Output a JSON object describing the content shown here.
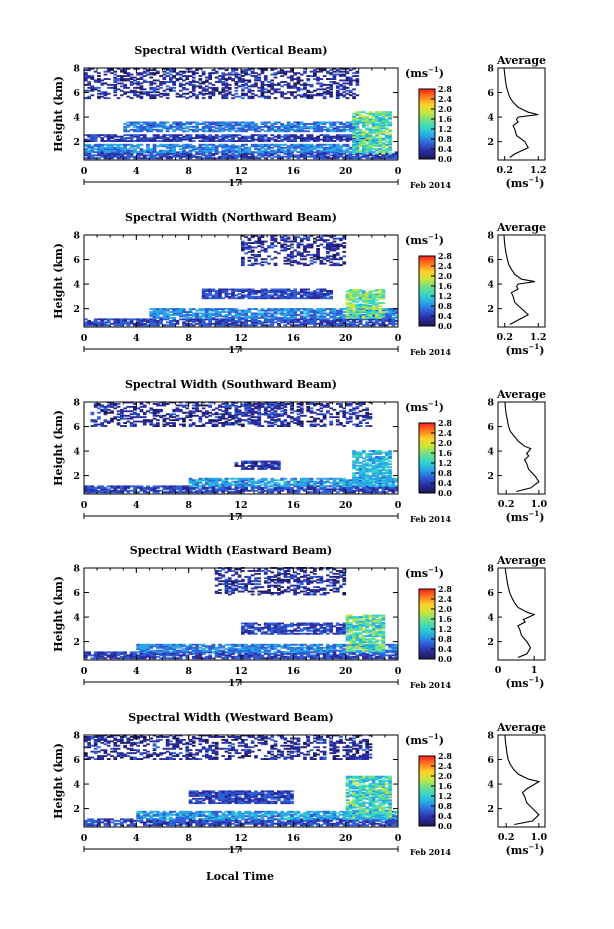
{
  "figure": {
    "xlabel": "Local Time",
    "date_center": "17",
    "date_label": "Feb 2014",
    "colorbar_unit_main": "(ms",
    "colorbar_unit_exp": "−1",
    "colorbar_unit_close": ")",
    "colorbar_ticks": [
      "0.0",
      "0.4",
      "0.8",
      "1.2",
      "1.6",
      "2.0",
      "2.4",
      "2.8"
    ],
    "colorbar_stops": [
      "#1a1a55",
      "#2b2b9e",
      "#2f5fd8",
      "#2aa6e8",
      "#33d6c8",
      "#6fe08a",
      "#c8e63a",
      "#ffd02a",
      "#ff7a1a",
      "#ff2020"
    ],
    "profile_title": "Average",
    "profile_unit_main": "(ms",
    "profile_unit_exp": "−1",
    "profile_unit_close": ")"
  },
  "chart_data": [
    {
      "type": "heatmap",
      "title": "Spectral Width (Vertical Beam)",
      "ylabel": "Height (km)",
      "x_ticks": [
        "0",
        "4",
        "8",
        "12",
        "16",
        "20",
        "0"
      ],
      "y_ticks": [
        "2",
        "4",
        "6",
        "8"
      ],
      "xlim": [
        0,
        24
      ],
      "ylim": [
        0.5,
        8
      ],
      "colorbar_range": [
        0,
        2.8
      ],
      "profile": {
        "title": "Average",
        "x_ticks": [
          "0.2",
          "1.2"
        ],
        "x_tick_values": [
          0.2,
          1.2
        ],
        "xlim": [
          0.0,
          1.4
        ],
        "y_ticks": [
          "2",
          "4",
          "6",
          "8"
        ],
        "x": [
          0.35,
          0.5,
          0.9,
          0.8,
          0.55,
          0.5,
          0.45,
          0.6,
          0.55,
          0.6,
          1.2,
          0.9,
          0.6,
          0.45,
          0.35,
          0.3,
          0.25,
          0.22,
          0.2,
          0.18
        ],
        "y": [
          0.7,
          1.0,
          1.5,
          2.0,
          2.5,
          3.0,
          3.3,
          3.6,
          3.8,
          4.0,
          4.2,
          4.4,
          4.8,
          5.2,
          5.6,
          6.0,
          6.5,
          7.0,
          7.5,
          8.0
        ]
      },
      "regions": [
        {
          "t0": 0.0,
          "t1": 24.0,
          "h0": 0.6,
          "h1": 1.1,
          "w": 0.5
        },
        {
          "t0": 0.0,
          "t1": 21.0,
          "h0": 1.1,
          "h1": 1.8,
          "w": 0.8
        },
        {
          "t0": 0.0,
          "t1": 22.0,
          "h0": 2.0,
          "h1": 2.6,
          "w": 0.4
        },
        {
          "t0": 3.0,
          "t1": 21.0,
          "h0": 2.8,
          "h1": 3.6,
          "w": 0.7
        },
        {
          "t0": 0.0,
          "t1": 21.0,
          "h0": 5.5,
          "h1": 8.0,
          "w": 0.3
        },
        {
          "t0": 20.5,
          "t1": 23.5,
          "h0": 1.0,
          "h1": 4.4,
          "w": 1.4
        }
      ]
    },
    {
      "type": "heatmap",
      "title": "Spectral Width (Northward Beam)",
      "ylabel": "Height (km)",
      "x_ticks": [
        "0",
        "4",
        "8",
        "12",
        "16",
        "20",
        "0"
      ],
      "y_ticks": [
        "2",
        "4",
        "6",
        "8"
      ],
      "xlim": [
        0,
        24
      ],
      "ylim": [
        0.5,
        8
      ],
      "colorbar_range": [
        0,
        2.8
      ],
      "profile": {
        "title": "Average",
        "x_ticks": [
          "0.2",
          "1.2"
        ],
        "x_tick_values": [
          0.2,
          1.2
        ],
        "xlim": [
          0.0,
          1.4
        ],
        "y_ticks": [
          "2",
          "4",
          "6",
          "8"
        ],
        "x": [
          0.35,
          0.55,
          0.9,
          0.7,
          0.5,
          0.45,
          0.4,
          0.6,
          0.55,
          0.6,
          1.1,
          0.7,
          0.5,
          0.4,
          0.32,
          0.28,
          0.24,
          0.21,
          0.19,
          0.18
        ],
        "y": [
          0.7,
          1.0,
          1.5,
          2.0,
          2.5,
          3.0,
          3.3,
          3.6,
          3.8,
          4.0,
          4.2,
          4.4,
          4.8,
          5.2,
          5.6,
          6.0,
          6.5,
          7.0,
          7.5,
          8.0
        ]
      },
      "regions": [
        {
          "t0": 0.0,
          "t1": 24.0,
          "h0": 0.6,
          "h1": 1.2,
          "w": 0.5
        },
        {
          "t0": 5.0,
          "t1": 24.0,
          "h0": 1.2,
          "h1": 2.0,
          "w": 0.8
        },
        {
          "t0": 9.0,
          "t1": 19.0,
          "h0": 2.8,
          "h1": 3.6,
          "w": 0.5
        },
        {
          "t0": 12.0,
          "t1": 20.0,
          "h0": 5.5,
          "h1": 8.0,
          "w": 0.3
        },
        {
          "t0": 20.0,
          "t1": 23.0,
          "h0": 1.2,
          "h1": 3.5,
          "w": 1.5
        }
      ]
    },
    {
      "type": "heatmap",
      "title": "Spectral Width (Southward Beam)",
      "ylabel": "Height (km)",
      "x_ticks": [
        "0",
        "4",
        "8",
        "12",
        "16",
        "20",
        "0"
      ],
      "y_ticks": [
        "2",
        "4",
        "6",
        "8"
      ],
      "xlim": [
        0,
        24
      ],
      "ylim": [
        0.5,
        8
      ],
      "colorbar_range": [
        0,
        2.8
      ],
      "profile": {
        "title": "Average",
        "x_ticks": [
          "0.2",
          "1.0"
        ],
        "x_tick_values": [
          0.2,
          1.0
        ],
        "xlim": [
          0.0,
          1.15
        ],
        "y_ticks": [
          "2",
          "4",
          "6",
          "8"
        ],
        "x": [
          0.45,
          0.8,
          1.0,
          0.9,
          0.75,
          0.7,
          0.65,
          0.75,
          0.7,
          0.75,
          0.8,
          0.65,
          0.5,
          0.4,
          0.3,
          0.26,
          0.23,
          0.2,
          0.18,
          0.17
        ],
        "y": [
          0.7,
          1.0,
          1.5,
          2.0,
          2.5,
          3.0,
          3.3,
          3.6,
          3.8,
          4.0,
          4.2,
          4.4,
          4.8,
          5.2,
          5.6,
          6.0,
          6.5,
          7.0,
          7.5,
          8.0
        ]
      },
      "regions": [
        {
          "t0": 0.0,
          "t1": 24.0,
          "h0": 0.6,
          "h1": 1.1,
          "w": 0.5
        },
        {
          "t0": 8.0,
          "t1": 24.0,
          "h0": 1.1,
          "h1": 1.8,
          "w": 0.9
        },
        {
          "t0": 11.5,
          "t1": 15.0,
          "h0": 2.5,
          "h1": 3.2,
          "w": 0.4
        },
        {
          "t0": 0.5,
          "t1": 22.0,
          "h0": 6.0,
          "h1": 8.0,
          "w": 0.3
        },
        {
          "t0": 11.5,
          "t1": 15.0,
          "h0": 6.2,
          "h1": 8.0,
          "w": 0.4
        },
        {
          "t0": 20.5,
          "t1": 23.5,
          "h0": 1.2,
          "h1": 4.0,
          "w": 1.0
        }
      ]
    },
    {
      "type": "heatmap",
      "title": "Spectral Width (Eastward Beam)",
      "ylabel": "Height (km)",
      "x_ticks": [
        "0",
        "4",
        "8",
        "12",
        "16",
        "20",
        "0"
      ],
      "y_ticks": [
        "2",
        "4",
        "6",
        "8"
      ],
      "xlim": [
        0,
        24
      ],
      "ylim": [
        0.5,
        8
      ],
      "colorbar_range": [
        0,
        2.8
      ],
      "profile": {
        "title": "Average",
        "x_ticks": [
          "0",
          "1"
        ],
        "x_tick_values": [
          0,
          1
        ],
        "xlim": [
          0.0,
          1.3
        ],
        "y_ticks": [
          "2",
          "4",
          "6",
          "8"
        ],
        "x": [
          0.55,
          0.8,
          0.9,
          0.8,
          0.65,
          0.6,
          0.55,
          0.75,
          0.7,
          0.85,
          1.0,
          0.8,
          0.55,
          0.45,
          0.38,
          0.32,
          0.28,
          0.25,
          0.22,
          0.2
        ],
        "y": [
          0.7,
          1.0,
          1.5,
          2.0,
          2.5,
          3.0,
          3.3,
          3.6,
          3.8,
          4.0,
          4.2,
          4.4,
          4.8,
          5.2,
          5.6,
          6.0,
          6.5,
          7.0,
          7.5,
          8.0
        ]
      },
      "regions": [
        {
          "t0": 0.0,
          "t1": 24.0,
          "h0": 0.6,
          "h1": 1.1,
          "w": 0.5
        },
        {
          "t0": 4.0,
          "t1": 24.0,
          "h0": 1.1,
          "h1": 1.8,
          "w": 0.8
        },
        {
          "t0": 12.0,
          "t1": 20.0,
          "h0": 2.6,
          "h1": 3.5,
          "w": 0.5
        },
        {
          "t0": 10.0,
          "t1": 20.0,
          "h0": 5.8,
          "h1": 8.0,
          "w": 0.3
        },
        {
          "t0": 20.0,
          "t1": 23.0,
          "h0": 1.2,
          "h1": 4.2,
          "w": 1.4
        }
      ]
    },
    {
      "type": "heatmap",
      "title": "Spectral Width (Westward Beam)",
      "ylabel": "Height (km)",
      "x_ticks": [
        "0",
        "4",
        "8",
        "12",
        "16",
        "20",
        "0"
      ],
      "y_ticks": [
        "2",
        "4",
        "6",
        "8"
      ],
      "xlim": [
        0,
        24
      ],
      "ylim": [
        0.5,
        8
      ],
      "colorbar_range": [
        0,
        2.8
      ],
      "profile": {
        "title": "Average",
        "x_ticks": [
          "0.2",
          "1.0"
        ],
        "x_tick_values": [
          0.2,
          1.0
        ],
        "xlim": [
          0.0,
          1.15
        ],
        "y_ticks": [
          "2",
          "4",
          "6",
          "8"
        ],
        "x": [
          0.4,
          0.85,
          1.0,
          0.85,
          0.7,
          0.65,
          0.6,
          0.7,
          0.8,
          0.9,
          1.0,
          0.75,
          0.5,
          0.38,
          0.3,
          0.25,
          0.22,
          0.2,
          0.18,
          0.17
        ],
        "y": [
          0.7,
          1.0,
          1.5,
          2.0,
          2.5,
          3.0,
          3.3,
          3.6,
          3.8,
          4.0,
          4.2,
          4.4,
          4.8,
          5.2,
          5.6,
          6.0,
          6.5,
          7.0,
          7.5,
          8.0
        ]
      },
      "regions": [
        {
          "t0": 0.0,
          "t1": 24.0,
          "h0": 0.6,
          "h1": 1.1,
          "w": 0.5
        },
        {
          "t0": 4.0,
          "t1": 24.0,
          "h0": 1.1,
          "h1": 1.8,
          "w": 0.9
        },
        {
          "t0": 8.0,
          "t1": 16.0,
          "h0": 2.4,
          "h1": 3.4,
          "w": 0.5
        },
        {
          "t0": 0.0,
          "t1": 22.0,
          "h0": 6.0,
          "h1": 8.0,
          "w": 0.3
        },
        {
          "t0": 20.0,
          "t1": 23.5,
          "h0": 1.2,
          "h1": 4.6,
          "w": 1.3
        }
      ]
    }
  ]
}
